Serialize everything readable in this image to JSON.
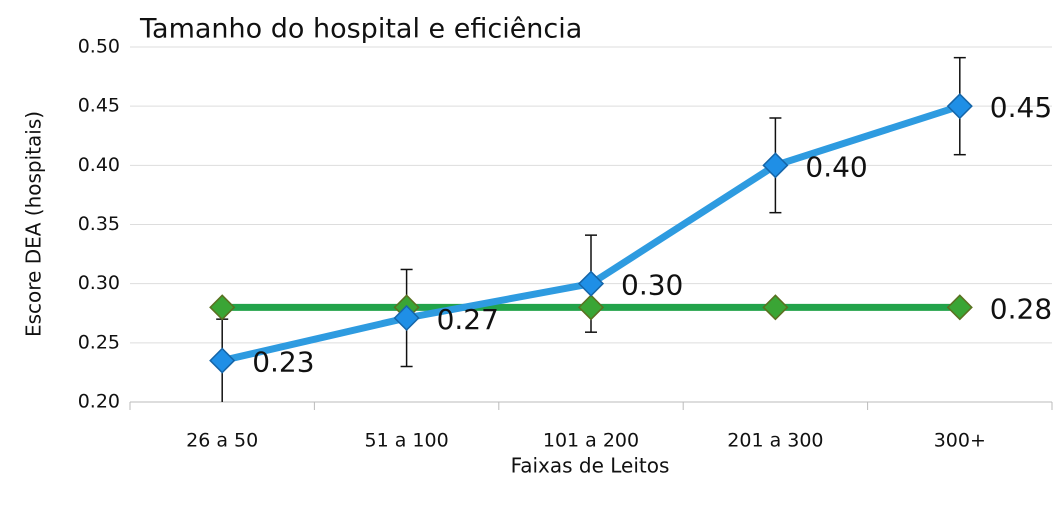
{
  "chart_data": {
    "type": "line",
    "title": "Tamanho do hospital e eficiência",
    "xlabel": "Faixas de Leitos",
    "ylabel": "Escore DEA (hospitais)",
    "categories": [
      "26 a 50",
      "51 a 100",
      "101 a 200",
      "201 a 300",
      "300+"
    ],
    "series": [
      {
        "color": "#2e9be0",
        "marker_color": "#1f8fe6",
        "values": [
          0.235,
          0.271,
          0.3,
          0.4,
          0.45
        ],
        "errors": [
          0.035,
          0.041,
          0.041,
          0.04,
          0.041
        ],
        "value_labels": [
          "0.23",
          "0.27",
          "0.30",
          "0.40",
          "0.45"
        ]
      },
      {
        "color": "#22a34a",
        "marker_color": "#3aa535",
        "values": [
          0.28,
          0.28,
          0.28,
          0.28,
          0.28
        ],
        "value_labels": [
          null,
          null,
          null,
          null,
          "0.28"
        ]
      }
    ],
    "ylim": [
      0.2,
      0.5
    ],
    "yticks": [
      {
        "value": 0.2,
        "label": "0.20"
      },
      {
        "value": 0.25,
        "label": "0.25"
      },
      {
        "value": 0.3,
        "label": "0.30"
      },
      {
        "value": 0.35,
        "label": "0.35"
      },
      {
        "value": 0.4,
        "label": "0.40"
      },
      {
        "value": 0.45,
        "label": "0.45"
      },
      {
        "value": 0.5,
        "label": "0.50"
      }
    ],
    "grid": true
  }
}
